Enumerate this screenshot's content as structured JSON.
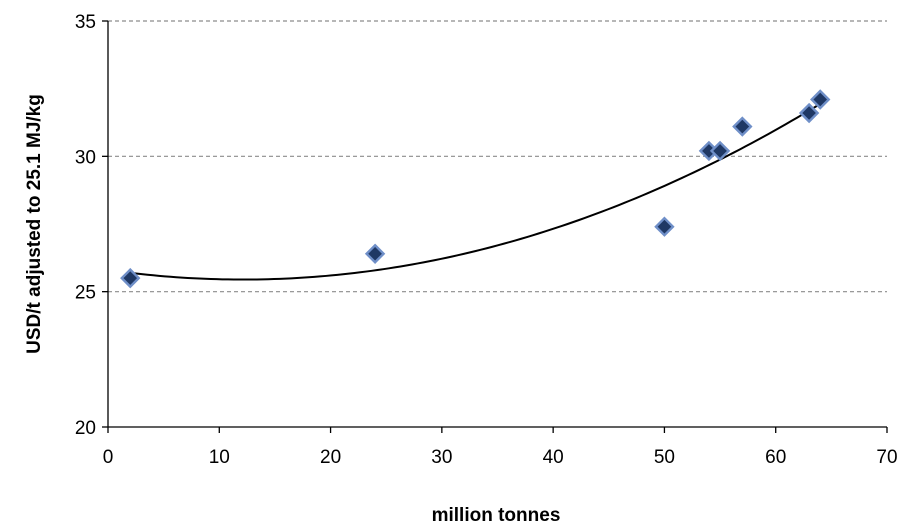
{
  "chart_data": {
    "type": "scatter",
    "title": "",
    "xlabel": "million tonnes",
    "ylabel": "USD/t adjusted to 25.1 MJ/kg",
    "xlim": [
      0,
      70
    ],
    "ylim": [
      20,
      35
    ],
    "xticks": [
      "0",
      "10",
      "20",
      "30",
      "40",
      "50",
      "60",
      "70"
    ],
    "yticks": [
      "20",
      "25",
      "30",
      "35"
    ],
    "grid": "horizontal dashed",
    "legend": "none",
    "series": [
      {
        "marker": "diamond",
        "points": [
          {
            "x": 2,
            "y": 25.5
          },
          {
            "x": 24,
            "y": 26.4
          },
          {
            "x": 50,
            "y": 27.4
          },
          {
            "x": 54,
            "y": 30.2
          },
          {
            "x": 55,
            "y": 30.2
          },
          {
            "x": 57,
            "y": 31.1
          },
          {
            "x": 63,
            "y": 31.6
          },
          {
            "x": 64,
            "y": 32.1
          }
        ]
      }
    ],
    "trendline": {
      "type": "polynomial-2",
      "x_range": [
        2,
        64
      ],
      "points": [
        {
          "x": 2,
          "y": 25.65
        },
        {
          "x": 11,
          "y": 25.5
        },
        {
          "x": 24,
          "y": 25.82
        },
        {
          "x": 50,
          "y": 28.83
        },
        {
          "x": 64,
          "y": 31.98
        }
      ]
    },
    "colors": {
      "marker_fill": "#1f3864",
      "marker_stroke": "#6f8fc8",
      "trendline": "#000000",
      "grid": "#8c8c8c",
      "axis": "#000000"
    }
  }
}
